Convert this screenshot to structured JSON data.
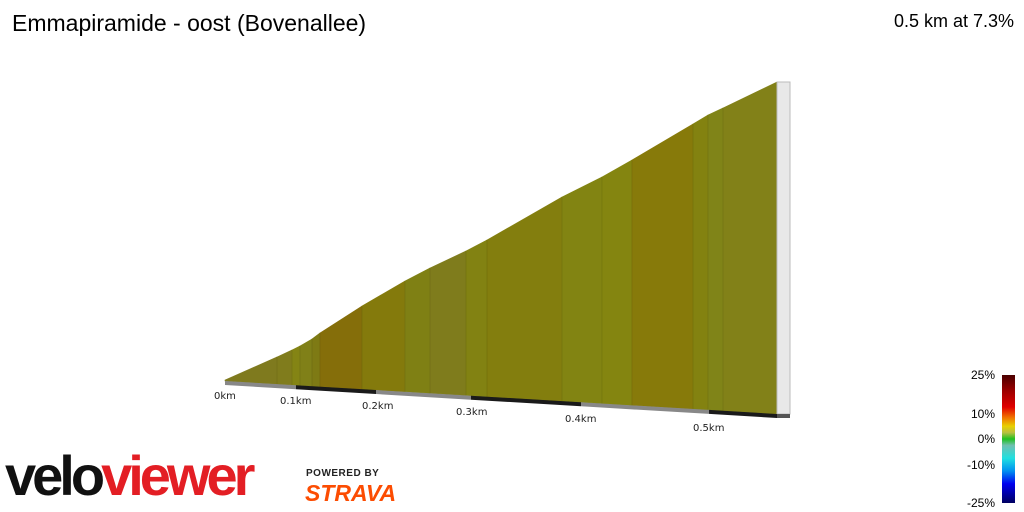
{
  "header": {
    "title": "Emmapiramide - oost (Bovenallee)",
    "summary": "0.5 km at 7.3%"
  },
  "chart": {
    "x_ticks": [
      "0km",
      "0.1km",
      "0.2km",
      "0.3km",
      "0.4km",
      "0.5km"
    ],
    "segment_colors": [
      "#7f7a1e",
      "#807c1c",
      "#848414",
      "#808018",
      "#7e7a14",
      "#856e0a",
      "#847a0c",
      "#7f8014",
      "#7f7c1c",
      "#828212",
      "#837e0e",
      "#828412",
      "#848510",
      "#877a0a",
      "#838210",
      "#808418",
      "#828118"
    ],
    "end_face_color": "#e8e8e8"
  },
  "legend": {
    "labels": [
      "25%",
      "10%",
      "0%",
      "-10%",
      "-25%"
    ]
  },
  "branding": {
    "logo_velo": "velo",
    "logo_viewer": "viewer",
    "powered_by": "POWERED BY",
    "strava": "STRAVA"
  }
}
